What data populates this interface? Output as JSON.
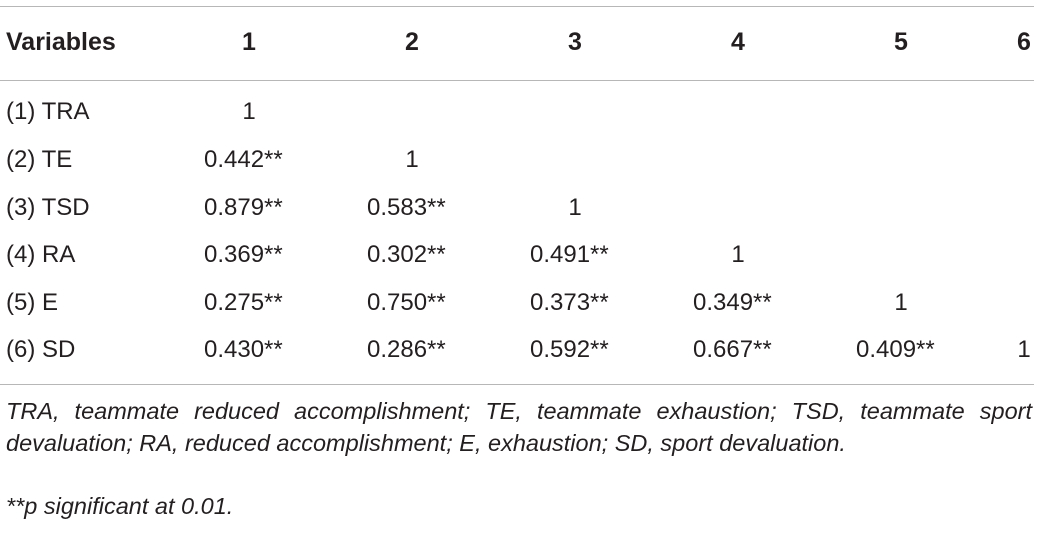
{
  "table": {
    "headers": [
      "Variables",
      "1",
      "2",
      "3",
      "4",
      "5",
      "6"
    ],
    "rows": [
      {
        "label": "(1) TRA",
        "cells": [
          "1",
          "",
          "",
          "",
          "",
          ""
        ]
      },
      {
        "label": "(2) TE",
        "cells": [
          "0.442**",
          "1",
          "",
          "",
          "",
          ""
        ]
      },
      {
        "label": "(3) TSD",
        "cells": [
          "0.879**",
          "0.583**",
          "1",
          "",
          "",
          ""
        ]
      },
      {
        "label": "(4) RA",
        "cells": [
          "0.369**",
          "0.302**",
          "0.491**",
          "1",
          "",
          ""
        ]
      },
      {
        "label": "(5) E",
        "cells": [
          "0.275**",
          "0.750**",
          "0.373**",
          "0.349**",
          "1",
          ""
        ]
      },
      {
        "label": "(6) SD",
        "cells": [
          "0.430**",
          "0.286**",
          "0.592**",
          "0.667**",
          "0.409**",
          "1"
        ]
      }
    ]
  },
  "footnotes": {
    "abbreviations": "TRA, teammate reduced accomplishment; TE, teammate exhaustion; TSD, teammate sport devaluation; RA, reduced accomplishment; E, exhaustion; SD, sport devaluation.",
    "significance": "**p significant at 0.01."
  }
}
